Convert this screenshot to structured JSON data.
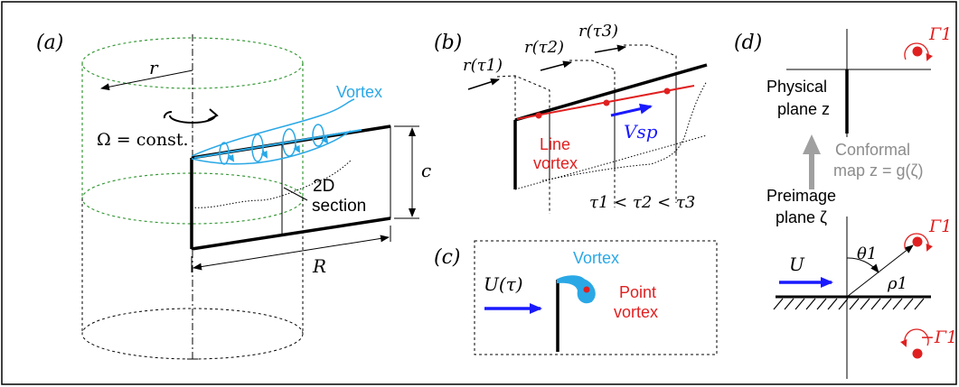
{
  "colors": {
    "vortex_cyan": "#2aa8e6",
    "red": "#e02020",
    "blue": "#1a1aff",
    "green_dashed": "#3a9a3a",
    "gray_arrow": "#a0a0a0",
    "gray_text": "#8c8c8c",
    "black": "#000000"
  },
  "panel_a": {
    "label": "(a)",
    "r": "r",
    "omega": "Ω = const.",
    "vortex": "Vortex",
    "c": "c",
    "section_line1": "2D",
    "section_line2": "section",
    "R": "R"
  },
  "panel_b": {
    "label": "(b)",
    "r_tau1": "r(τ1)",
    "r_tau2": "r(τ2)",
    "r_tau3": "r(τ3)",
    "line_vortex_1": "Line",
    "line_vortex_2": "vortex",
    "vsp": "Vsp",
    "tau_order": "τ1 < τ2 < τ3"
  },
  "panel_c": {
    "label": "(c)",
    "u_tau": "U(τ)",
    "vortex": "Vortex",
    "point_vortex_1": "Point",
    "point_vortex_2": "vortex"
  },
  "panel_d": {
    "label": "(d)",
    "gamma1": "Γ1",
    "physical_1": "Physical",
    "physical_2": "plane z",
    "conformal_1": "Conformal",
    "conformal_2": "map z = g(ζ)",
    "preimage_1": "Preimage",
    "preimage_2": "plane ζ",
    "theta1": "θ1",
    "rho1": "ρ1",
    "U": "U",
    "gamma1_top_right": "Γ1",
    "neg_gamma1": "−Γ1"
  }
}
